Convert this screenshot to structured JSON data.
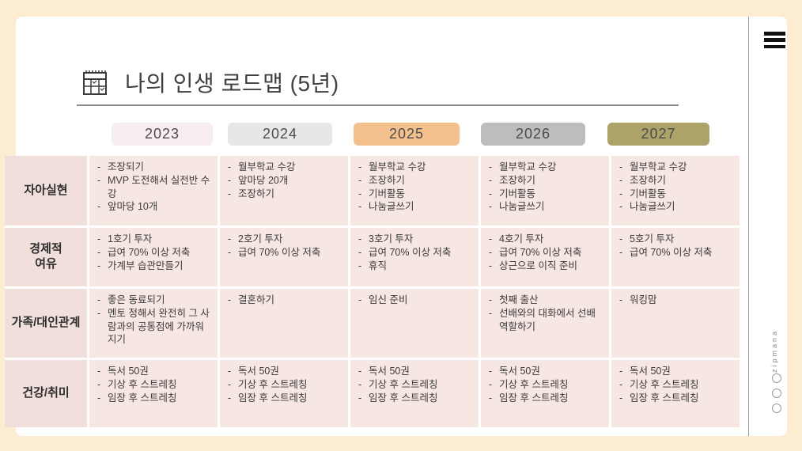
{
  "page": {
    "title": "나의 인생 로드맵 (5년)",
    "watermark": "zipmana"
  },
  "colors": {
    "page_background": "#fcecd1",
    "slide_background": "#ffffff",
    "header_cell": "#f1dfdb",
    "body_cell": "#f7e7e3"
  },
  "years": [
    {
      "label": "2023",
      "bg": "#f8edef"
    },
    {
      "label": "2024",
      "bg": "#e7e7e9"
    },
    {
      "label": "2025",
      "bg": "#f4c08e"
    },
    {
      "label": "2026",
      "bg": "#bebdbd"
    },
    {
      "label": "2027",
      "bg": "#aca368"
    }
  ],
  "table": {
    "rows": [
      {
        "header": "자아실현",
        "cells": [
          [
            "조장되기",
            "MVP 도전해서 실전반 수강",
            "앞마당 10개"
          ],
          [
            "월부학교 수강",
            "앞마당 20개",
            "조장하기"
          ],
          [
            "월부학교 수강",
            "조장하기",
            "기버활동",
            "나눔글쓰기"
          ],
          [
            "월부학교 수강",
            "조장하기",
            "기버활동",
            "나눔글쓰기"
          ],
          [
            "월부학교 수강",
            "조장하기",
            "기버활동",
            "나눔글쓰기"
          ]
        ]
      },
      {
        "header": "경제적\n여유",
        "cells": [
          [
            "1호기 투자",
            "급여 70% 이상 저축",
            "가계부 습관만들기"
          ],
          [
            "2호기 투자",
            "급여 70% 이상 저축"
          ],
          [
            "3호기 투자",
            "급여 70% 이상 저축",
            "휴직"
          ],
          [
            "4호기 투자",
            "급여 70% 이상 저축",
            "상근으로 이직 준비"
          ],
          [
            "5호기 투자",
            "급여 70% 이상 저축"
          ]
        ]
      },
      {
        "header": "가족/대인관계",
        "cells": [
          [
            "좋은 동료되기",
            "멘토 정해서 완전히 그 사람과의 공통점에 가까워지기"
          ],
          [
            "결혼하기"
          ],
          [
            "임신 준비"
          ],
          [
            "첫째 출산",
            "선배와의 대화에서 선배역할하기"
          ],
          [
            "워킹맘"
          ]
        ]
      },
      {
        "header": "건강/취미",
        "cells": [
          [
            "독서 50권",
            "기상 후 스트레칭",
            "임장 후 스트레칭"
          ],
          [
            "독서 50권",
            "기상 후 스트레칭",
            "임장 후 스트레칭"
          ],
          [
            "독서 50권",
            "기상 후 스트레칭",
            "임장 후 스트레칭"
          ],
          [
            "독서 50권",
            "기상 후 스트레칭",
            "임장 후 스트레칭"
          ],
          [
            "독서 50권",
            "기상 후 스트레칭",
            "임장 후 스트레칭"
          ]
        ]
      }
    ]
  }
}
